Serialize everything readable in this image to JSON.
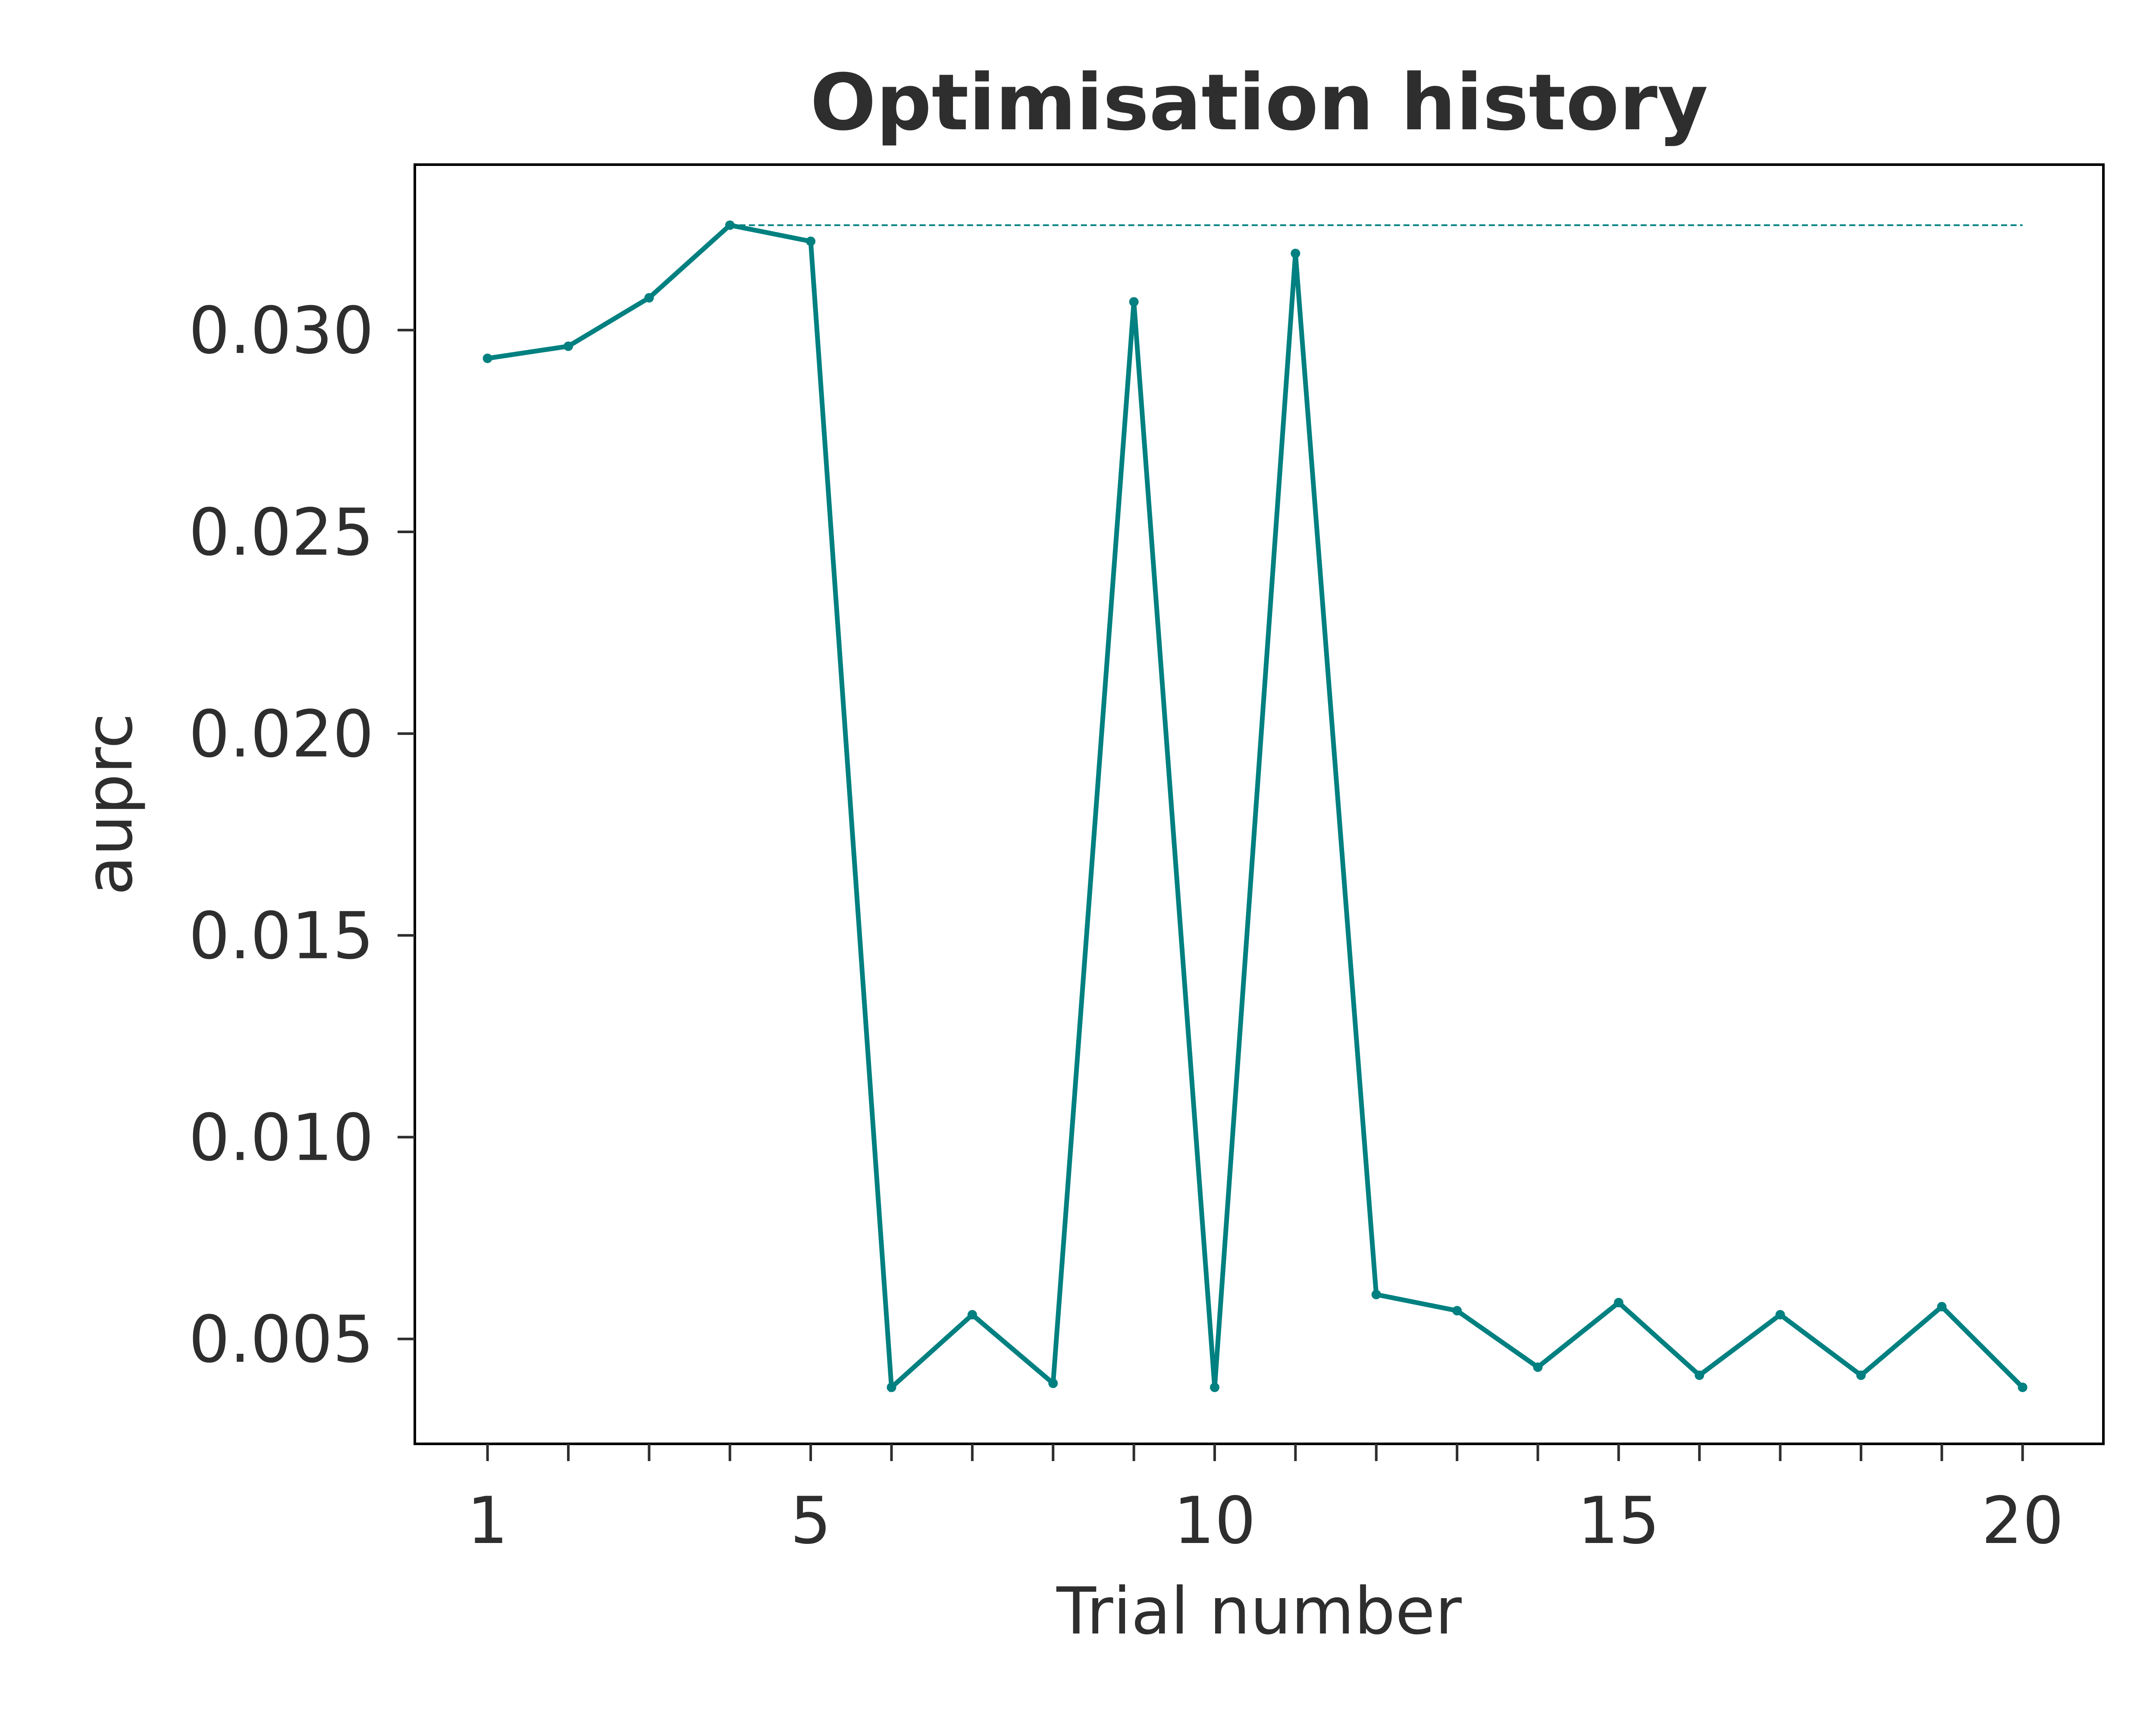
{
  "chart_data": {
    "type": "line",
    "title": "Optimisation history",
    "xlabel": "Trial number",
    "ylabel": "auprc",
    "x": [
      1,
      2,
      3,
      4,
      5,
      6,
      7,
      8,
      9,
      10,
      11,
      12,
      13,
      14,
      15,
      16,
      17,
      18,
      19,
      20
    ],
    "series": [
      {
        "values": [
          0.0293,
          0.0296,
          0.0308,
          0.0326,
          0.0322,
          0.0038,
          0.0056,
          0.0039,
          0.0307,
          0.0038,
          0.0319,
          0.0061,
          0.0057,
          0.0043,
          0.0059,
          0.0041,
          0.0056,
          0.0041,
          0.0058,
          0.0038
        ],
        "color": "#008080",
        "style": "solid",
        "markers": true
      },
      {
        "values": [
          null,
          null,
          null,
          0.0326,
          0.0326,
          0.0326,
          0.0326,
          0.0326,
          0.0326,
          0.0326,
          0.0326,
          0.0326,
          0.0326,
          0.0326,
          0.0326,
          0.0326,
          0.0326,
          0.0326,
          0.0326,
          0.0326
        ],
        "color": "#008080",
        "style": "dashed",
        "markers": false
      }
    ],
    "xlim": [
      0.1,
      21.0
    ],
    "ylim": [
      0.0024,
      0.0341
    ],
    "x_ticks": [
      1,
      2,
      3,
      4,
      5,
      6,
      7,
      8,
      9,
      10,
      11,
      12,
      13,
      14,
      15,
      16,
      17,
      18,
      19,
      20
    ],
    "x_tick_labels": [
      {
        "x": 1,
        "label": "1"
      },
      {
        "x": 5,
        "label": "5"
      },
      {
        "x": 10,
        "label": "10"
      },
      {
        "x": 15,
        "label": "15"
      },
      {
        "x": 20,
        "label": "20"
      }
    ],
    "y_ticks": [
      {
        "y": 0.005,
        "label": "0.005"
      },
      {
        "y": 0.01,
        "label": "0.010"
      },
      {
        "y": 0.015,
        "label": "0.015"
      },
      {
        "y": 0.02,
        "label": "0.020"
      },
      {
        "y": 0.025,
        "label": "0.025"
      },
      {
        "y": 0.03,
        "label": "0.030"
      }
    ],
    "grid": false
  }
}
